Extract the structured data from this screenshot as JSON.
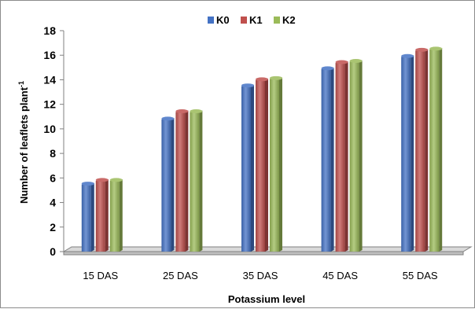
{
  "chart_data": {
    "type": "bar",
    "title": "",
    "xlabel": "Potassium level",
    "ylabel": "Number of leaflets plant",
    "ylabel_superscript": "-1",
    "categories": [
      "15 DAS",
      "25 DAS",
      "35 DAS",
      "45 DAS",
      "55 DAS"
    ],
    "series": [
      {
        "name": "K0",
        "values": [
          5.6,
          10.9,
          13.6,
          15.0,
          16.0
        ]
      },
      {
        "name": "K1",
        "values": [
          5.9,
          11.5,
          14.1,
          15.5,
          16.5
        ]
      },
      {
        "name": "K2",
        "values": [
          5.9,
          11.5,
          14.2,
          15.6,
          16.6
        ]
      }
    ],
    "ylim": [
      0,
      18
    ],
    "yticks": [
      0,
      2,
      4,
      6,
      8,
      10,
      12,
      14,
      16,
      18
    ],
    "grid": false,
    "legend": "top-center",
    "colors": {
      "K0": "#4472c4",
      "K1": "#c0504d",
      "K2": "#9bbb59",
      "floor": "#d9d9d9",
      "axis": "#808080"
    }
  }
}
